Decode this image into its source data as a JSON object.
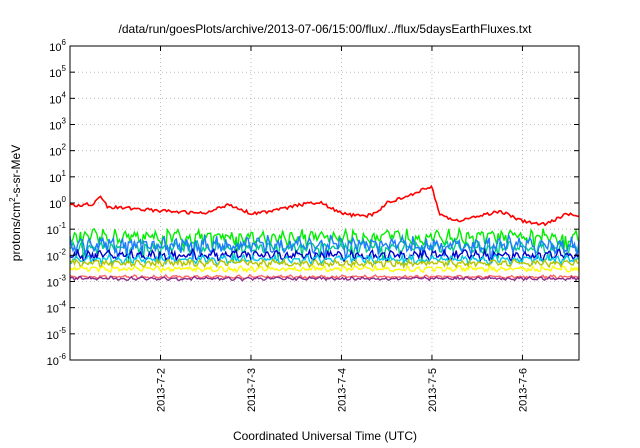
{
  "chart_data": {
    "type": "line",
    "title": "/data/run/goesPlots/archive/2013-07-06/15:00/flux/../flux/5daysEarthFluxes.txt",
    "xlabel": "Coordinated Universal Time (UTC)",
    "ylabel_parts": {
      "pre": "protons/cm",
      "sup": "2",
      "post": "-s-sr-MeV"
    },
    "x_range_days": [
      "2013-07-01T00:00",
      "2013-07-06T15:00"
    ],
    "x_ticks": [
      "2013-7-2",
      "2013-7-3",
      "2013-7-4",
      "2013-7-5",
      "2013-7-6"
    ],
    "y_scale": "log",
    "ylim": [
      1e-06,
      1000000.0
    ],
    "y_ticks": [
      {
        "base": "10",
        "exp": "6"
      },
      {
        "base": "10",
        "exp": "5"
      },
      {
        "base": "10",
        "exp": "4"
      },
      {
        "base": "10",
        "exp": "3"
      },
      {
        "base": "10",
        "exp": "2"
      },
      {
        "base": "10",
        "exp": "1"
      },
      {
        "base": "10",
        "exp": "0"
      },
      {
        "base": "10",
        "exp": "-1"
      },
      {
        "base": "10",
        "exp": "-2"
      },
      {
        "base": "10",
        "exp": "-3"
      },
      {
        "base": "10",
        "exp": "-4"
      },
      {
        "base": "10",
        "exp": "-5"
      },
      {
        "base": "10",
        "exp": "-6"
      }
    ],
    "grid": true,
    "legend": "none",
    "series": [
      {
        "color": "#ff0000",
        "points": [
          [
            "2013-07-01T00:00",
            0.8
          ],
          [
            "2013-07-01T06:00",
            0.9
          ],
          [
            "2013-07-01T08:00",
            2.0
          ],
          [
            "2013-07-01T10:00",
            0.7
          ],
          [
            "2013-07-01T18:00",
            0.6
          ],
          [
            "2013-07-02T00:00",
            0.5
          ],
          [
            "2013-07-02T12:00",
            0.4
          ],
          [
            "2013-07-02T18:00",
            0.9
          ],
          [
            "2013-07-03T00:00",
            0.4
          ],
          [
            "2013-07-03T06:00",
            0.5
          ],
          [
            "2013-07-03T12:00",
            0.8
          ],
          [
            "2013-07-03T18:00",
            1.1
          ],
          [
            "2013-07-04T00:00",
            0.4
          ],
          [
            "2013-07-04T06:00",
            0.3
          ],
          [
            "2013-07-04T09:00",
            0.4
          ],
          [
            "2013-07-04T12:00",
            1.0
          ],
          [
            "2013-07-04T18:00",
            2.0
          ],
          [
            "2013-07-04T21:00",
            3.0
          ],
          [
            "2013-07-05T00:00",
            4.0
          ],
          [
            "2013-07-05T02:00",
            0.4
          ],
          [
            "2013-07-05T06:00",
            0.2
          ],
          [
            "2013-07-05T12:00",
            0.3
          ],
          [
            "2013-07-05T18:00",
            0.5
          ],
          [
            "2013-07-06T00:00",
            0.2
          ],
          [
            "2013-07-06T06:00",
            0.15
          ],
          [
            "2013-07-06T12:00",
            0.4
          ],
          [
            "2013-07-06T15:00",
            0.3
          ]
        ]
      },
      {
        "color": "#00ee00",
        "level": 0.05,
        "spread": 0.25
      },
      {
        "color": "#00cc88",
        "level": 0.02,
        "spread": 0.2
      },
      {
        "color": "#1e7cff",
        "level": 0.025,
        "spread": 0.3
      },
      {
        "color": "#0000cc",
        "level": 0.01,
        "spread": 0.18
      },
      {
        "color": "#00c8e6",
        "level": 0.007,
        "spread": 0.15
      },
      {
        "color": "#b5c400",
        "level": 0.005,
        "spread": 0.12
      },
      {
        "color": "#ffff00",
        "level": 0.003,
        "spread": 0.1
      },
      {
        "color": "#ff6666",
        "level": 0.0015,
        "spread": 0.06
      },
      {
        "color": "#8b2d8b",
        "level": 0.0013,
        "spread": 0.06
      }
    ]
  }
}
